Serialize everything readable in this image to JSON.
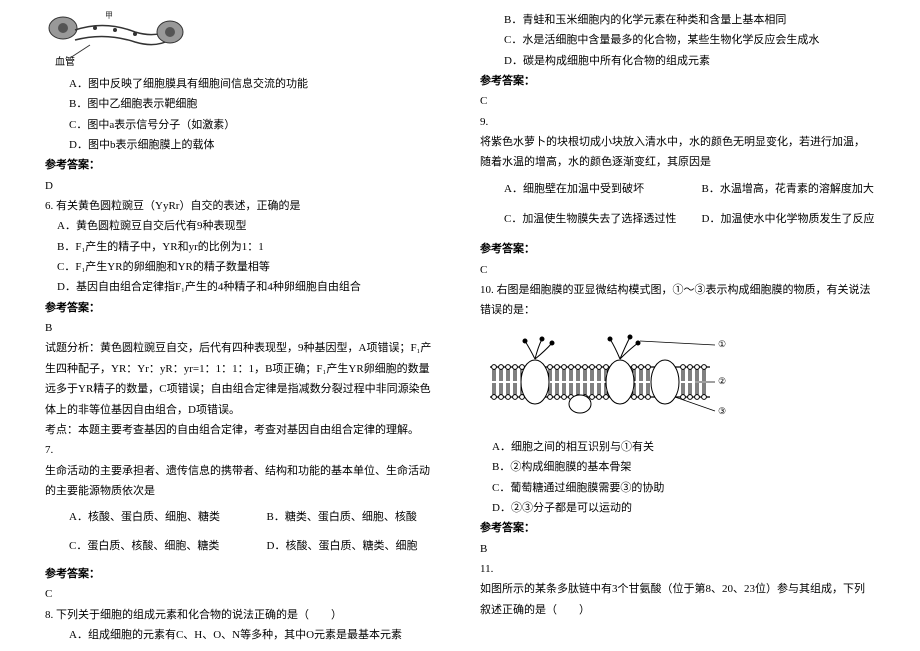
{
  "colors": {
    "text": "#000000",
    "bg": "#ffffff",
    "diagram_fill": "#888888",
    "diagram_line": "#333333"
  },
  "font": {
    "size": 11,
    "line_height": 1.85
  },
  "left": {
    "diagram1_label": "血管",
    "q5_optA": "A．图中反映了细胞膜具有细胞间信息交流的功能",
    "q5_optB": "B．图中乙细胞表示靶细胞",
    "q5_optC": "C．图中a表示信号分子（如激素）",
    "q5_optD": "D．图中b表示细胞膜上的载体",
    "ans_label": "参考答案：",
    "q5_ans": "D",
    "q6_stem": "6. 有关黄色圆粒豌豆（YyRr）自交的表述，正确的是",
    "q6_optA": "A．黄色圆粒豌豆自交后代有9种表现型",
    "q6_optB": "B．F₁产生的精子中，YR和yr的比例为1：1",
    "q6_optC": "C．F₁产生YR的卵细胞和YR的精子数量相等",
    "q6_optD": "D．基因自由组合定律指F₁产生的4种精子和4种卵细胞自由组合",
    "q6_ans": "B",
    "q6_exp1": "试题分析：黄色圆粒豌豆自交，后代有四种表现型，9种基因型，A项错误；F₁产生四种配子，YR：Yr：yR：yr=1：1：1：1，B项正确；F₁产生YR卵细胞的数量远多于YR精子的数量，C项错误；自由组合定律是指减数分裂过程中非同源染色体上的非等位基因自由组合，D项错误。",
    "q6_exp2": "考点：本题主要考查基因的自由组合定律，考查对基因自由组合定律的理解。",
    "q7_num": "7.",
    "q7_stem": "生命活动的主要承担者、遗传信息的携带者、结构和功能的基本单位、生命活动的主要能源物质依次是",
    "q7_optA": "A．核酸、蛋白质、细胞、糖类",
    "q7_optB": "B．糖类、蛋白质、细胞、核酸",
    "q7_optC": "C．蛋白质、核酸、细胞、糖类",
    "q7_optD": "D．核酸、蛋白质、糖类、细胞",
    "q7_ans": "C",
    "q8_stem": "8. 下列关于细胞的组成元素和化合物的说法正确的是（　　）",
    "q8_optA": "A．组成细胞的元素有C、H、O、N等多种，其中O元素是最基本元素"
  },
  "right": {
    "q8_optB": "B．青蛙和玉米细胞内的化学元素在种类和含量上基本相同",
    "q8_optC": "C．水是活细胞中含量最多的化合物，某些生物化学反应会生成水",
    "q8_optD": "D．碳是构成细胞中所有化合物的组成元素",
    "ans_label": "参考答案：",
    "q8_ans": "C",
    "q9_num": "9.",
    "q9_stem": "将紫色水萝卜的块根切成小块放入清水中，水的颜色无明显变化，若进行加温，随着水温的增高，水的颜色逐渐变红，其原因是",
    "q9_optA": "A．细胞壁在加温中受到破坏",
    "q9_optB": "B．水温增高，花青素的溶解度加大",
    "q9_optC": "C．加温使生物膜失去了选择透过性",
    "q9_optD": "D．加温使水中化学物质发生了反应",
    "q9_ans": "C",
    "q10_stem": "10. 右图是细胞膜的亚显微结构模式图，①～③表示构成细胞膜的物质，有关说法错误的是：",
    "q10_optA": "A．细胞之间的相互识别与①有关",
    "q10_optB": "B．②构成细胞膜的基本骨架",
    "q10_optC": "C．葡萄糖通过细胞膜需要③的协助",
    "q10_optD": "D．②③分子都是可以运动的",
    "q10_ans": "B",
    "q11_num": "11.",
    "q11_stem": "如图所示的某条多肽链中有3个甘氨酸（位于第8、20、23位）参与其组成，下列叙述正确的是（　　）"
  }
}
